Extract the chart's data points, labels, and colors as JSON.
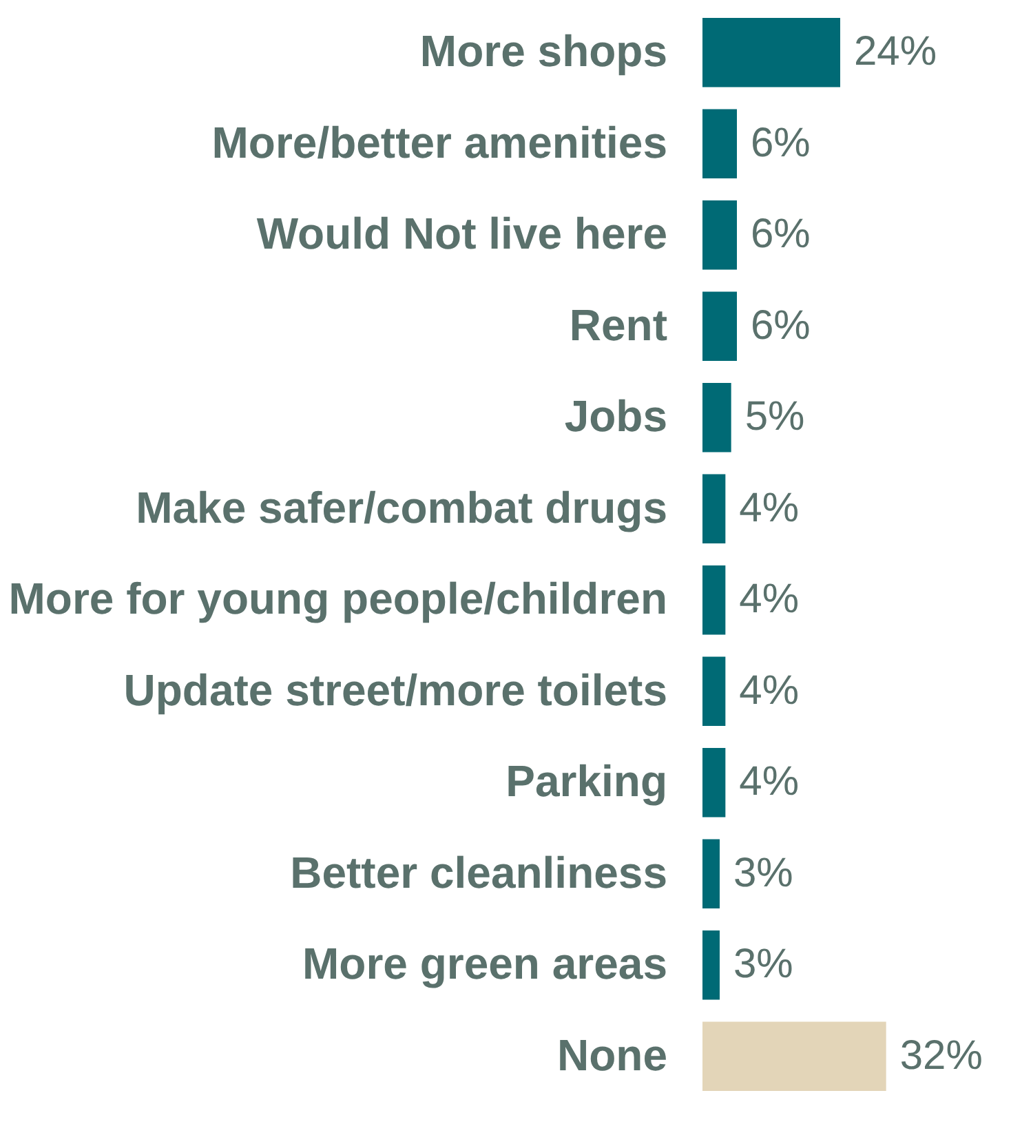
{
  "chart_data": {
    "type": "bar",
    "orientation": "horizontal",
    "categories": [
      "More shops",
      "More/better amenities",
      "Would Not live here",
      "Rent",
      "Jobs",
      "Make safer/combat drugs",
      "More for young people/children",
      "Update street/more toilets",
      "Parking",
      "Better cleanliness",
      "More green areas",
      "None"
    ],
    "values": [
      24,
      6,
      6,
      6,
      5,
      4,
      4,
      4,
      4,
      3,
      3,
      32
    ],
    "value_labels": [
      "24%",
      "6%",
      "6%",
      "6%",
      "5%",
      "4%",
      "4%",
      "4%",
      "4%",
      "3%",
      "3%",
      "32%"
    ],
    "colors": [
      "#006a75",
      "#006a75",
      "#006a75",
      "#006a75",
      "#006a75",
      "#006a75",
      "#006a75",
      "#006a75",
      "#006a75",
      "#006a75",
      "#006a75",
      "#e3d5b8"
    ]
  }
}
